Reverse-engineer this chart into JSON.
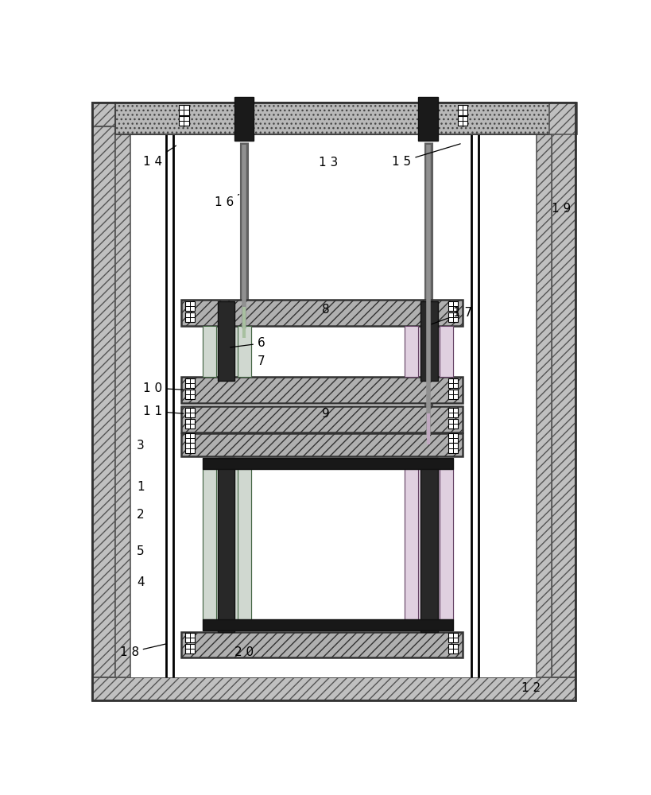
{
  "fig_w": 8.19,
  "fig_h": 10.0,
  "dpi": 100,
  "outer_wall_fc": "#c8c8c8",
  "outer_wall_ec": "#444444",
  "hatch_plate_fc": "#b8b8b8",
  "hatch_plate_ec": "#444444",
  "inner_bg": "white",
  "coil_left": "#d0d8d0",
  "coil_right": "#e0d0e0",
  "core_dark": "#282828",
  "black_plate": "#181818",
  "lead_outer": "#808080",
  "lead_inner_left": "#909890",
  "lead_inner_right": "#c0b0c0",
  "label_fs": 11
}
